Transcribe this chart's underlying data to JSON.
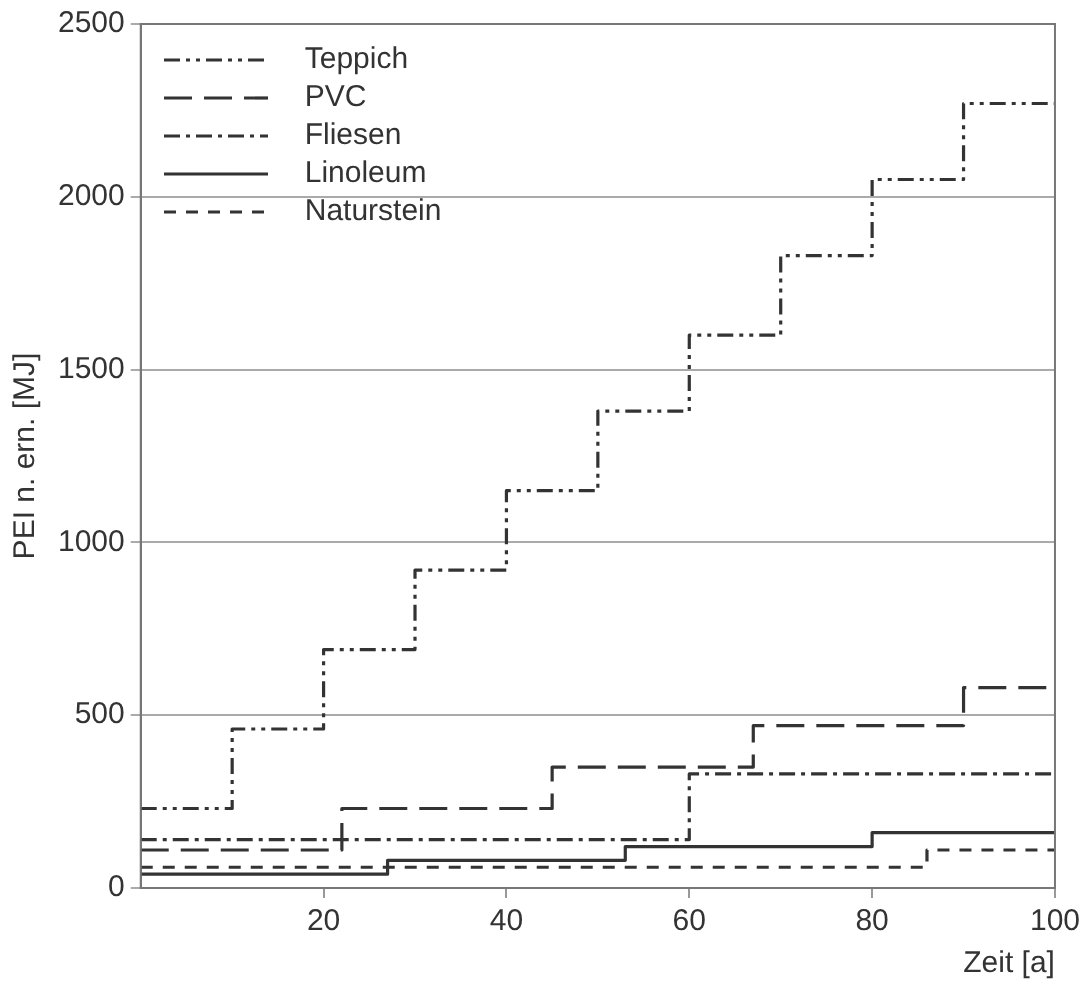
{
  "chart_data": {
    "type": "step",
    "xlabel": "Zeit [a]",
    "ylabel": "PEI n. ern. [MJ]",
    "xlim": [
      0,
      100
    ],
    "xticks": [
      20,
      40,
      60,
      80,
      100
    ],
    "ylim": [
      0,
      2500
    ],
    "yticks": [
      0,
      500,
      1000,
      1500,
      2000,
      2500
    ],
    "grid": "y",
    "legend": "top left",
    "marker": "none",
    "series": [
      {
        "name": "Teppich",
        "color": "#333333",
        "line_style": "dashdotdot",
        "x": [
          0,
          10,
          20,
          30,
          40,
          50,
          60,
          70,
          80,
          90,
          100
        ],
        "values": [
          230,
          460,
          690,
          920,
          1150,
          1380,
          1600,
          1830,
          2050,
          2270,
          2270
        ]
      },
      {
        "name": "PVC",
        "color": "#333333",
        "line_style": "longdash",
        "x": [
          0,
          22,
          45,
          67,
          90,
          100
        ],
        "values": [
          110,
          230,
          350,
          470,
          580,
          580
        ]
      },
      {
        "name": "Fliesen",
        "color": "#333333",
        "line_style": "dashdot",
        "x": [
          0,
          60,
          100
        ],
        "values": [
          140,
          330,
          330
        ]
      },
      {
        "name": "Linoleum",
        "color": "#333333",
        "line_style": "solid",
        "x": [
          0,
          27,
          53,
          80,
          100
        ],
        "values": [
          40,
          80,
          120,
          160,
          160
        ]
      },
      {
        "name": "Naturstein",
        "color": "#333333",
        "line_style": "dashed",
        "x": [
          0,
          86,
          100
        ],
        "values": [
          60,
          110,
          110
        ]
      }
    ]
  }
}
